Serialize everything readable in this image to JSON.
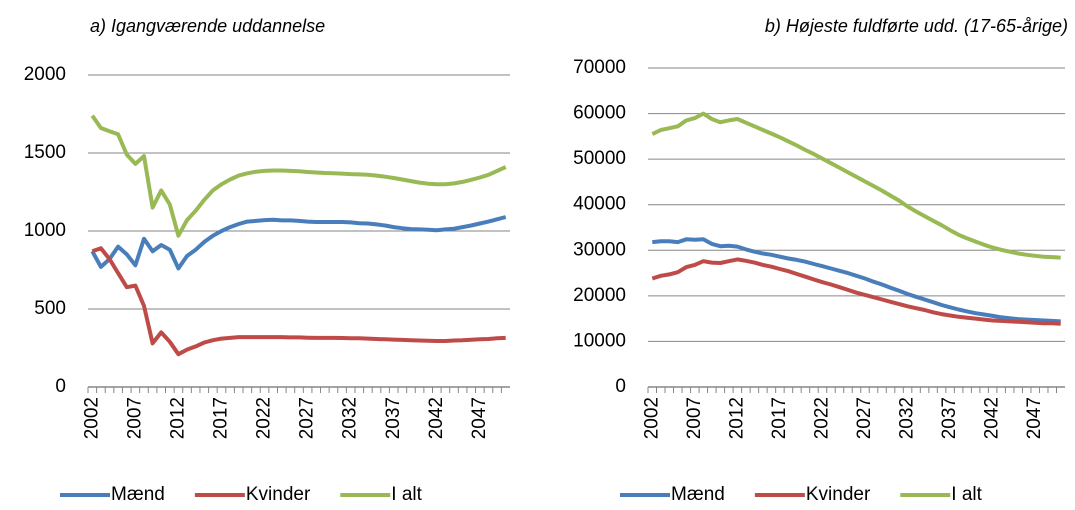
{
  "chart_data": [
    {
      "type": "line",
      "title": "a) Igangværende uddannelse",
      "x": [
        2002,
        2003,
        2004,
        2005,
        2006,
        2007,
        2008,
        2009,
        2010,
        2011,
        2012,
        2013,
        2014,
        2015,
        2016,
        2017,
        2018,
        2019,
        2020,
        2021,
        2022,
        2023,
        2024,
        2025,
        2026,
        2027,
        2028,
        2029,
        2030,
        2031,
        2032,
        2033,
        2034,
        2035,
        2036,
        2037,
        2038,
        2039,
        2040,
        2041,
        2042,
        2043,
        2044,
        2045,
        2046,
        2047,
        2048,
        2049,
        2050
      ],
      "xlim": [
        2001.5,
        2050.5
      ],
      "xticks": [
        2002,
        2007,
        2012,
        2017,
        2022,
        2027,
        2032,
        2037,
        2042,
        2047
      ],
      "ylim": [
        0,
        2000
      ],
      "yticks": [
        0,
        500,
        1000,
        1500,
        2000
      ],
      "grid": true,
      "series": [
        {
          "name": "Mænd",
          "color": "#4a7ebb",
          "values": [
            870,
            770,
            820,
            900,
            850,
            780,
            950,
            870,
            910,
            880,
            760,
            840,
            880,
            930,
            970,
            1000,
            1025,
            1045,
            1060,
            1065,
            1070,
            1072,
            1068,
            1068,
            1065,
            1060,
            1058,
            1058,
            1058,
            1058,
            1055,
            1050,
            1048,
            1042,
            1035,
            1025,
            1018,
            1012,
            1010,
            1008,
            1005,
            1010,
            1015,
            1025,
            1035,
            1048,
            1060,
            1075,
            1090
          ]
        },
        {
          "name": "Kvinder",
          "color": "#be4b48",
          "values": [
            870,
            890,
            820,
            730,
            640,
            650,
            520,
            280,
            350,
            290,
            210,
            240,
            260,
            285,
            300,
            310,
            315,
            320,
            320,
            320,
            320,
            320,
            320,
            318,
            318,
            316,
            315,
            315,
            315,
            314,
            312,
            312,
            310,
            308,
            306,
            304,
            302,
            300,
            298,
            296,
            295,
            295,
            298,
            300,
            303,
            306,
            308,
            312,
            315
          ]
        },
        {
          "name": "I alt",
          "color": "#98b954",
          "values": [
            1740,
            1660,
            1640,
            1620,
            1490,
            1430,
            1480,
            1150,
            1260,
            1170,
            970,
            1070,
            1130,
            1200,
            1260,
            1300,
            1330,
            1355,
            1370,
            1380,
            1385,
            1388,
            1388,
            1385,
            1383,
            1378,
            1375,
            1372,
            1370,
            1368,
            1365,
            1363,
            1360,
            1355,
            1348,
            1340,
            1330,
            1320,
            1310,
            1303,
            1300,
            1300,
            1305,
            1315,
            1328,
            1343,
            1360,
            1385,
            1410
          ]
        }
      ]
    },
    {
      "type": "line",
      "title": "b) Højeste fuldførte udd. (17-65-årige)",
      "x": [
        2002,
        2003,
        2004,
        2005,
        2006,
        2007,
        2008,
        2009,
        2010,
        2011,
        2012,
        2013,
        2014,
        2015,
        2016,
        2017,
        2018,
        2019,
        2020,
        2021,
        2022,
        2023,
        2024,
        2025,
        2026,
        2027,
        2028,
        2029,
        2030,
        2031,
        2032,
        2033,
        2034,
        2035,
        2036,
        2037,
        2038,
        2039,
        2040,
        2041,
        2042,
        2043,
        2044,
        2045,
        2046,
        2047,
        2048,
        2049,
        2050
      ],
      "xlim": [
        2001.5,
        2050.5
      ],
      "xticks": [
        2002,
        2007,
        2012,
        2017,
        2022,
        2027,
        2032,
        2037,
        2042,
        2047
      ],
      "ylim": [
        0,
        70000
      ],
      "yticks": [
        0,
        10000,
        20000,
        30000,
        40000,
        50000,
        60000,
        70000
      ],
      "grid": true,
      "series": [
        {
          "name": "Mænd",
          "color": "#4a7ebb",
          "values": [
            31800,
            32000,
            32000,
            31800,
            32400,
            32300,
            32400,
            31400,
            30900,
            31000,
            30800,
            30200,
            29700,
            29300,
            29000,
            28600,
            28200,
            27900,
            27500,
            27000,
            26500,
            26000,
            25500,
            25000,
            24400,
            23800,
            23100,
            22500,
            21800,
            21100,
            20400,
            19800,
            19200,
            18600,
            18000,
            17500,
            17000,
            16600,
            16200,
            15900,
            15600,
            15300,
            15100,
            14900,
            14800,
            14700,
            14600,
            14500,
            14400
          ]
        },
        {
          "name": "Kvinder",
          "color": "#be4b48",
          "values": [
            23800,
            24400,
            24700,
            25200,
            26300,
            26800,
            27600,
            27300,
            27200,
            27600,
            28000,
            27700,
            27300,
            26800,
            26400,
            25900,
            25400,
            24800,
            24200,
            23600,
            23000,
            22500,
            21900,
            21300,
            20700,
            20200,
            19700,
            19200,
            18700,
            18200,
            17700,
            17300,
            16900,
            16400,
            16000,
            15700,
            15400,
            15200,
            15000,
            14800,
            14600,
            14500,
            14400,
            14300,
            14200,
            14100,
            14000,
            14000,
            13900
          ]
        },
        {
          "name": "I alt",
          "color": "#98b954",
          "values": [
            55500,
            56400,
            56800,
            57200,
            58500,
            59000,
            60000,
            58800,
            58100,
            58500,
            58800,
            58000,
            57200,
            56400,
            55600,
            54800,
            53900,
            53000,
            52000,
            51100,
            50100,
            49100,
            48100,
            47100,
            46100,
            45100,
            44100,
            43100,
            42000,
            40900,
            39600,
            38500,
            37500,
            36500,
            35500,
            34400,
            33400,
            32600,
            31900,
            31200,
            30600,
            30100,
            29700,
            29300,
            29000,
            28800,
            28600,
            28500,
            28400
          ]
        }
      ]
    }
  ]
}
